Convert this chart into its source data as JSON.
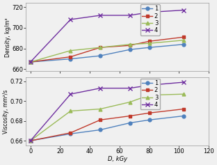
{
  "x": [
    0,
    27,
    47,
    67,
    80,
    103
  ],
  "density": {
    "series1": [
      667,
      670,
      673,
      679,
      681,
      684
    ],
    "series2": [
      667,
      672,
      681,
      683,
      687,
      691
    ],
    "series3": [
      667,
      678,
      681,
      684,
      685,
      688
    ],
    "series4": [
      667,
      708,
      712,
      712,
      715,
      717
    ]
  },
  "viscosity": {
    "series1": [
      0.66,
      0.667,
      0.671,
      0.678,
      0.681,
      0.685
    ],
    "series2": [
      0.66,
      0.668,
      0.681,
      0.685,
      0.688,
      0.692
    ],
    "series3": [
      0.66,
      0.69,
      0.692,
      0.699,
      0.706,
      0.707
    ],
    "series4": [
      0.66,
      0.707,
      0.713,
      0.713,
      0.716,
      0.719
    ]
  },
  "colors": [
    "#4f81bd",
    "#c0392b",
    "#9bbb59",
    "#7030a0"
  ],
  "markers": [
    "o",
    "s",
    "^",
    "x"
  ],
  "labels": [
    "1",
    "2",
    "3",
    "4"
  ],
  "xlabel": "D, kGy",
  "ylabel_top": "Density, kg/m³",
  "ylabel_bottom": "Viscosity, mm²/s",
  "density_ylim": [
    658,
    724
  ],
  "density_yticks": [
    660,
    680,
    700,
    720
  ],
  "viscosity_ylim": [
    0.655,
    0.724
  ],
  "viscosity_yticks": [
    0.66,
    0.68,
    0.7,
    0.72
  ],
  "xlim": [
    -3,
    118
  ],
  "xticks": [
    0,
    20,
    40,
    60,
    80,
    100,
    120
  ],
  "bg_color": "#f0f0f0"
}
